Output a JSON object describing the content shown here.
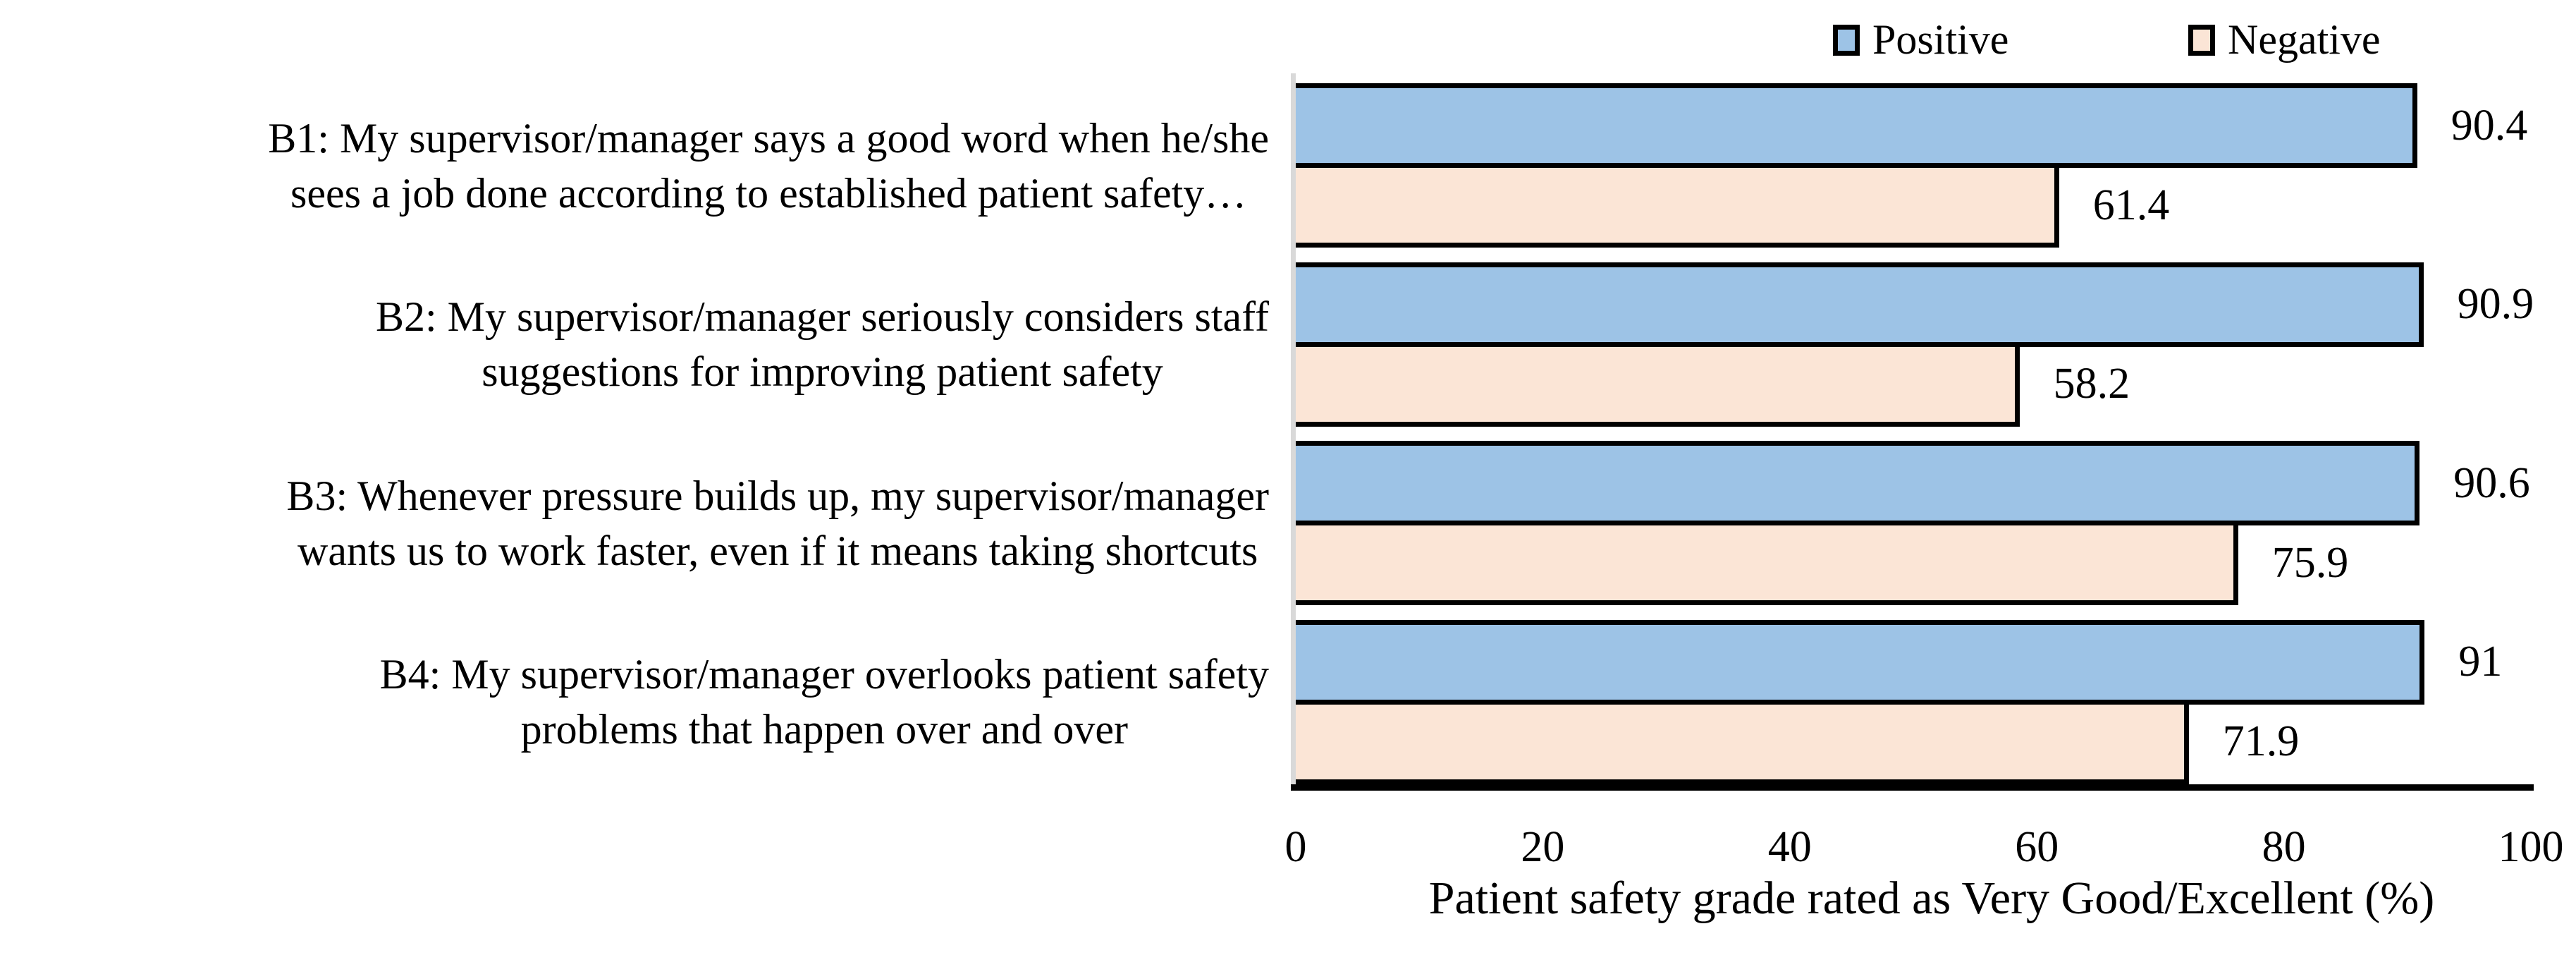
{
  "chart_data": {
    "type": "bar",
    "orientation": "horizontal",
    "categories": [
      "B1: My supervisor/manager says a good word when he/she\nsees a job done according to established patient safety…",
      "B2: My supervisor/manager seriously considers staff\nsuggestions for improving patient safety",
      "B3: Whenever pressure builds up, my supervisor/manager\nwants us to work faster, even if it means taking shortcuts",
      "B4: My supervisor/manager overlooks patient safety\nproblems that happen over and over"
    ],
    "series": [
      {
        "name": "Positive",
        "color": "#9DC3E6",
        "values": [
          90.4,
          90.9,
          90.6,
          91
        ]
      },
      {
        "name": "Negative",
        "color": "#FBE5D6",
        "values": [
          61.4,
          58.2,
          75.9,
          71.9
        ]
      }
    ],
    "bar_border_color": "#000000",
    "xlabel": "Patient safety grade rated as Very Good/Excellent (%)",
    "xticks": [
      0,
      20,
      40,
      60,
      80,
      100
    ],
    "xlim": [
      0,
      100
    ],
    "grid": false,
    "value_labels": "outside-end",
    "legend": {
      "position": "top",
      "entries": [
        "Positive",
        "Negative"
      ]
    },
    "axis_line_color": "#000000",
    "category_axis_line_color": "#D9D9D9",
    "text_color": "#000000",
    "background_color": "#FFFFFF"
  }
}
